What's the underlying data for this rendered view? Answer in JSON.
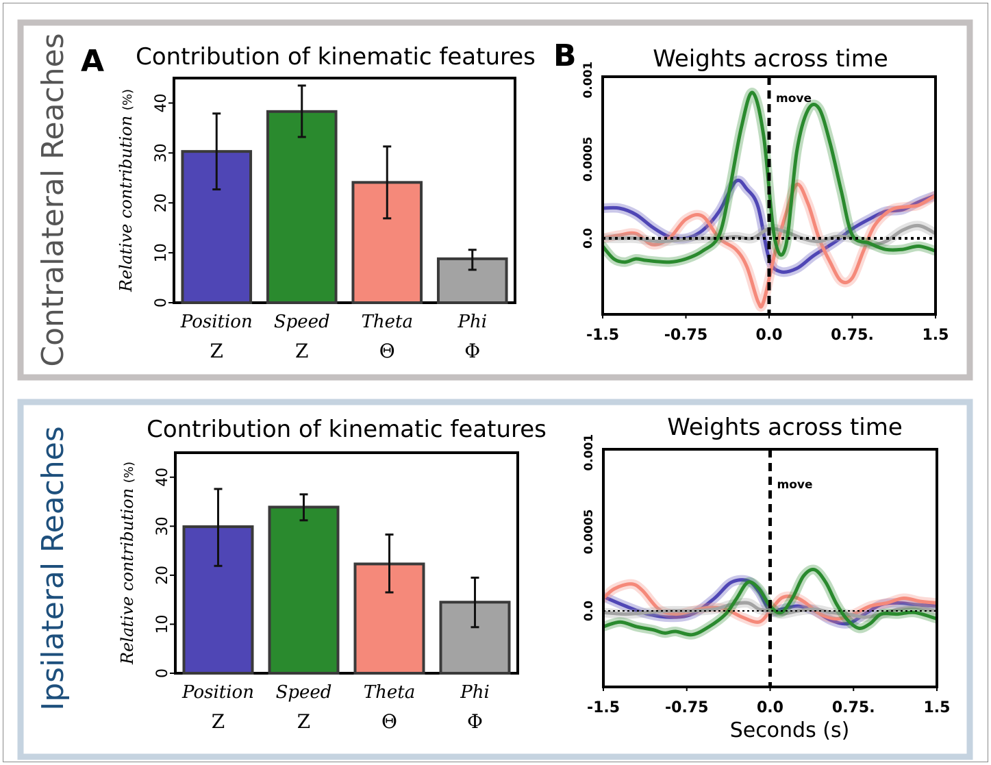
{
  "panels": [
    {
      "side_label": "Contralateral Reaches",
      "side_color": "#555555",
      "frame_color": "#c4c0c0",
      "bar_letter": "A",
      "curve_letter": "B"
    },
    {
      "side_label": "Ipsilateral Reaches",
      "side_color": "#1d4f7c",
      "frame_color": "#c5d3e0",
      "bar_letter": "",
      "curve_letter": ""
    }
  ],
  "colors": {
    "position": "#4f46b5",
    "speed": "#2a8a2e",
    "theta": "#f5897a",
    "phi": "#a3a3a3"
  },
  "chart_data": [
    {
      "type": "bar",
      "title": "Contribution of kinematic features",
      "ylabel": "Relative contribution",
      "ylabel_unit": "(%)",
      "ylim": [
        0,
        45
      ],
      "yticks": [
        "0",
        "10",
        "20",
        "30",
        "40"
      ],
      "categories": [
        "Position",
        "Speed",
        "Theta",
        "Phi"
      ],
      "category_symbols": [
        "Z",
        "Z",
        "Θ",
        "Φ"
      ],
      "values": [
        30.3,
        38.3,
        24.1,
        8.8
      ],
      "error_low": [
        22.7,
        33.2,
        16.9,
        6.6
      ],
      "error_high": [
        37.9,
        43.5,
        31.3,
        10.6
      ]
    },
    {
      "type": "line",
      "title": "Weights across time",
      "xlabel": "",
      "xlim": [
        -1.5,
        1.5
      ],
      "ylim": [
        -0.00048,
        0.00102
      ],
      "xticks": [
        "-1.5",
        "-0.75",
        "0.0",
        "0.75.",
        "1.5"
      ],
      "yticks": [
        "0.0",
        "0.0005",
        "0.001"
      ],
      "event_label": "move",
      "event_x": 0.0,
      "series": [
        {
          "key": "position",
          "x": [
            -1.5,
            -1.35,
            -1.2,
            -1.05,
            -0.9,
            -0.75,
            -0.6,
            -0.45,
            -0.3,
            -0.2,
            -0.1,
            0.0,
            0.1,
            0.25,
            0.4,
            0.6,
            0.75,
            0.9,
            1.05,
            1.2,
            1.35,
            1.5
          ],
          "y": [
            0.00019,
            0.00019,
            0.00015,
            7e-05,
            1e-05,
            0.0,
            5e-05,
            0.00017,
            0.00036,
            0.00031,
            0.0002,
            -0.00013,
            -0.00021,
            -0.00019,
            -0.00011,
            -2e-05,
            6e-05,
            0.00012,
            0.00017,
            0.00018,
            0.00023,
            0.00027
          ]
        },
        {
          "key": "speed",
          "x": [
            -1.5,
            -1.4,
            -1.3,
            -1.2,
            -1.1,
            -0.9,
            -0.75,
            -0.6,
            -0.45,
            -0.35,
            -0.25,
            -0.15,
            -0.05,
            0.05,
            0.15,
            0.25,
            0.35,
            0.45,
            0.55,
            0.65,
            0.75,
            0.9,
            1.05,
            1.2,
            1.35,
            1.5
          ],
          "y": [
            -5e-05,
            -0.00013,
            -0.00015,
            -0.00013,
            -0.00014,
            -0.00015,
            -0.00013,
            -8e-05,
            2e-05,
            0.00033,
            0.0007,
            0.00092,
            0.00065,
            0.0,
            -5e-05,
            0.00055,
            0.00081,
            0.00082,
            0.0006,
            0.0003,
            2e-05,
            -3e-05,
            -7e-05,
            -7e-05,
            -5e-05,
            -8e-05
          ]
        },
        {
          "key": "theta",
          "x": [
            -1.5,
            -1.35,
            -1.2,
            -1.05,
            -0.9,
            -0.75,
            -0.6,
            -0.45,
            -0.3,
            -0.2,
            -0.1,
            -0.05,
            0.05,
            0.15,
            0.25,
            0.35,
            0.45,
            0.55,
            0.65,
            0.75,
            0.85,
            0.95,
            1.1,
            1.25,
            1.35,
            1.5
          ],
          "y": [
            0.0,
            2e-05,
            3e-05,
            -4e-05,
            0.0,
            0.00012,
            0.00014,
            0.0,
            -7e-05,
            -0.00018,
            -0.0004,
            -0.0004,
            -0.0001,
            0.00015,
            0.00034,
            0.00022,
            0.0,
            -0.00015,
            -0.00027,
            -0.00025,
            -8e-05,
            8e-05,
            0.00018,
            0.0002,
            0.00021,
            0.00027
          ]
        },
        {
          "key": "phi",
          "x": [
            -1.5,
            -1.35,
            -1.2,
            -1.0,
            -0.8,
            -0.6,
            -0.45,
            -0.3,
            -0.15,
            0.0,
            0.15,
            0.3,
            0.45,
            0.6,
            0.75,
            0.9,
            1.05,
            1.2,
            1.35,
            1.5
          ],
          "y": [
            0.0,
            0.0,
            0.0,
            -2e-05,
            -1e-05,
            0.0,
            0.0,
            1e-05,
            0.0,
            6e-05,
            4e-05,
            0.0,
            -2e-05,
            1e-05,
            0.0,
            -4e-05,
            -2e-05,
            5e-05,
            8e-05,
            3e-05
          ]
        }
      ]
    },
    {
      "type": "bar",
      "title": "Contribution of kinematic features",
      "ylabel": "Relative contribution",
      "ylabel_unit": "(%)",
      "ylim": [
        0,
        45
      ],
      "yticks": [
        "0",
        "10",
        "20",
        "30",
        "40"
      ],
      "categories": [
        "Position",
        "Speed",
        "Theta",
        "Phi"
      ],
      "category_symbols": [
        "Z",
        "Z",
        "Θ",
        "Φ"
      ],
      "values": [
        29.9,
        33.9,
        22.3,
        14.5
      ],
      "error_low": [
        21.9,
        31.2,
        16.5,
        9.4
      ],
      "error_high": [
        37.6,
        36.5,
        28.3,
        19.5
      ]
    },
    {
      "type": "line",
      "title": "Weights across time",
      "xlabel": "Seconds (s)",
      "xlim": [
        -1.5,
        1.5
      ],
      "ylim": [
        -0.00048,
        0.00102
      ],
      "xticks": [
        "-1.5",
        "-0.75",
        "0.0",
        "0.75.",
        "1.5"
      ],
      "yticks": [
        "0.0",
        "0.0005",
        "0.001"
      ],
      "event_label": "move",
      "event_x": 0.0,
      "series": [
        {
          "key": "position",
          "x": [
            -1.5,
            -1.3,
            -1.1,
            -0.9,
            -0.7,
            -0.5,
            -0.35,
            -0.2,
            -0.1,
            0.0,
            0.1,
            0.25,
            0.4,
            0.55,
            0.7,
            0.85,
            1.0,
            1.15,
            1.3,
            1.5
          ],
          "y": [
            9e-05,
            3e-05,
            -2e-05,
            -4e-05,
            -2e-05,
            8e-05,
            0.00018,
            0.00019,
            0.00012,
            0.0,
            1e-05,
            3e-05,
            0.0,
            -6e-05,
            -8e-05,
            -2e-05,
            4e-05,
            5e-05,
            4e-05,
            3e-05
          ]
        },
        {
          "key": "speed",
          "x": [
            -1.5,
            -1.35,
            -1.2,
            -1.05,
            -0.95,
            -0.85,
            -0.7,
            -0.55,
            -0.4,
            -0.3,
            -0.2,
            -0.1,
            0.0,
            0.1,
            0.2,
            0.3,
            0.4,
            0.5,
            0.6,
            0.7,
            0.8,
            0.9,
            1.0,
            1.15,
            1.3,
            1.5
          ],
          "y": [
            -0.0001,
            -7e-05,
            -0.0001,
            -0.00012,
            -0.00014,
            -0.00013,
            -0.00015,
            -0.0001,
            -2e-05,
            8e-05,
            0.00018,
            0.00014,
            3e-05,
            -1e-05,
            8e-05,
            0.00022,
            0.00026,
            0.00018,
            4e-05,
            -6e-05,
            -0.00011,
            -8e-05,
            -2e-05,
            -2e-05,
            -1e-05,
            -5e-05
          ]
        },
        {
          "key": "theta",
          "x": [
            -1.5,
            -1.4,
            -1.25,
            -1.15,
            -1.0,
            -0.85,
            -0.7,
            -0.55,
            -0.4,
            -0.25,
            -0.1,
            0.0,
            0.1,
            0.2,
            0.3,
            0.45,
            0.6,
            0.75,
            0.9,
            1.05,
            1.2,
            1.35,
            1.5
          ],
          "y": [
            8e-05,
            0.00014,
            0.00017,
            0.00013,
            1e-05,
            -2e-05,
            0.0,
            2e-05,
            1e-05,
            -4e-05,
            -7e-05,
            0.0,
            8e-05,
            9e-05,
            6e-05,
            -2e-05,
            -5e-05,
            -2e-05,
            3e-05,
            5e-05,
            8e-05,
            6e-05,
            5e-05
          ]
        },
        {
          "key": "phi",
          "x": [
            -1.5,
            -1.3,
            -1.1,
            -0.9,
            -0.7,
            -0.5,
            -0.35,
            -0.2,
            -0.1,
            0.0,
            0.1,
            0.25,
            0.4,
            0.55,
            0.7,
            0.85,
            1.0,
            1.15,
            1.3,
            1.5
          ],
          "y": [
            -1e-05,
            -2e-05,
            -1e-05,
            0.0,
            0.0,
            1e-05,
            4e-05,
            5e-05,
            1e-05,
            0.0,
            -2e-05,
            0.0,
            1e-05,
            -1e-05,
            -2e-05,
            -4e-05,
            -2e-05,
            1e-05,
            2e-05,
            0.0
          ]
        }
      ]
    }
  ]
}
